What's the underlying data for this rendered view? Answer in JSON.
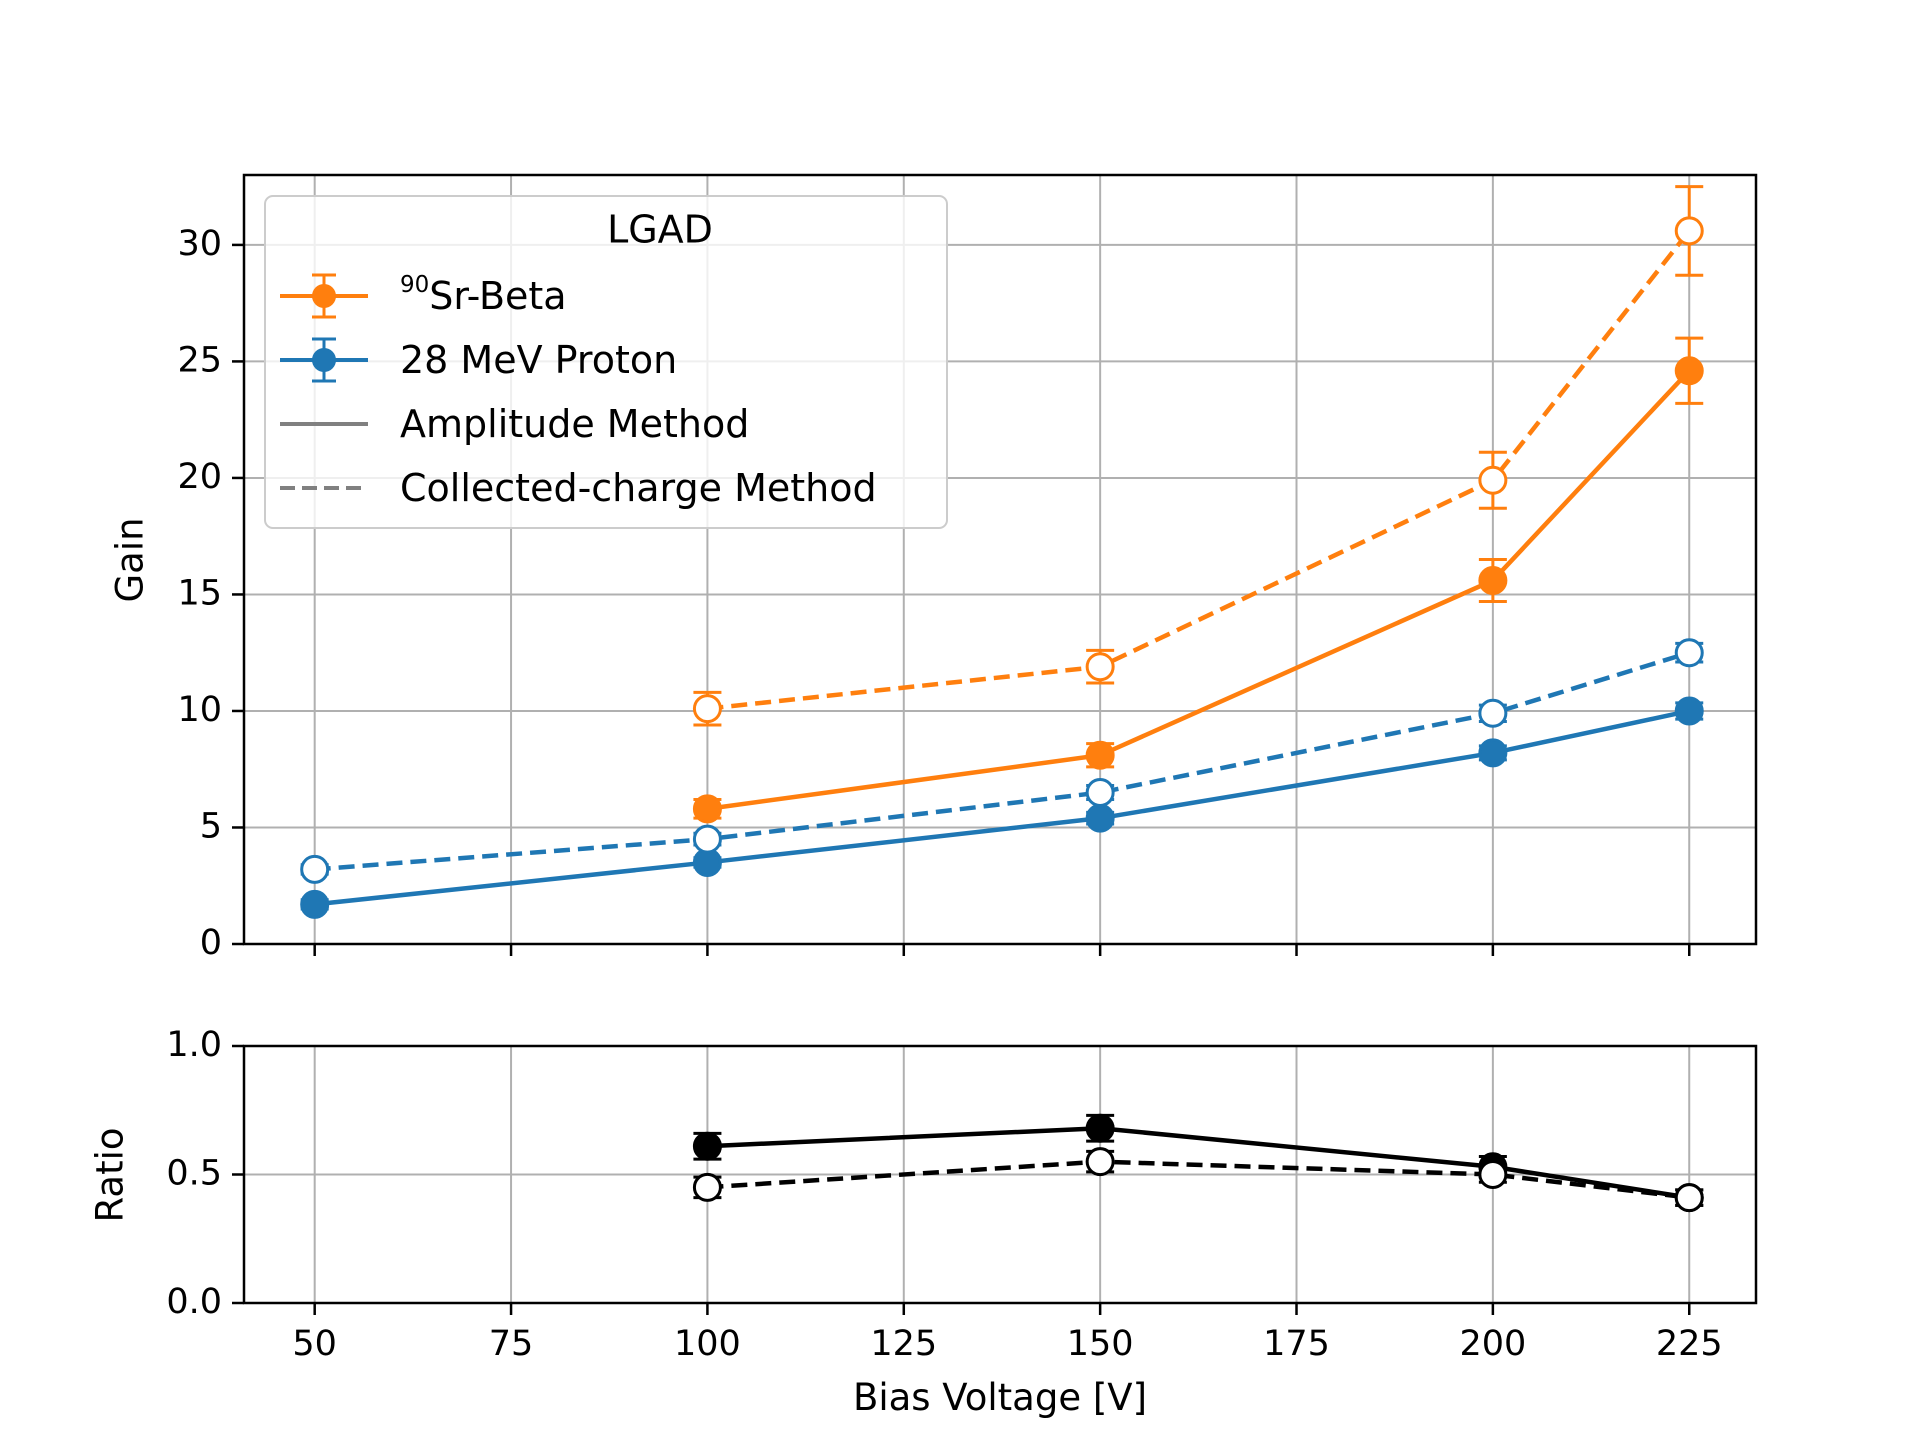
{
  "chart_data": [
    {
      "panel": "top",
      "type": "line",
      "ylabel": "Gain",
      "ylim": [
        0,
        33
      ],
      "yticks": [
        0,
        5,
        10,
        15,
        20,
        25,
        30
      ],
      "xlim": [
        41,
        233.5
      ],
      "grid": true,
      "legend": {
        "title": "LGAD",
        "placement": "top-left",
        "entries": [
          {
            "label_sup": "90",
            "label": "Sr-Beta",
            "color": "#ff7f0e",
            "kind": "errorbar"
          },
          {
            "label": "28 MeV Proton",
            "color": "#1f77b4",
            "kind": "errorbar"
          },
          {
            "label": "Amplitude Method",
            "color": "#808080",
            "kind": "solid"
          },
          {
            "label": "Collected-charge Method",
            "color": "#808080",
            "kind": "dashed"
          }
        ]
      },
      "series": [
        {
          "name": "Sr-Beta Amplitude",
          "color": "#ff7f0e",
          "style": "solid",
          "filled": true,
          "x": [
            100,
            150,
            200,
            225
          ],
          "y": [
            5.8,
            8.1,
            15.6,
            24.6
          ],
          "err": [
            0.4,
            0.5,
            0.9,
            1.4
          ]
        },
        {
          "name": "Sr-Beta Collected-charge",
          "color": "#ff7f0e",
          "style": "dashed",
          "filled": false,
          "x": [
            100,
            150,
            200,
            225
          ],
          "y": [
            10.1,
            11.9,
            19.9,
            30.6
          ],
          "err": [
            0.7,
            0.7,
            1.2,
            1.9
          ]
        },
        {
          "name": "Proton Amplitude",
          "color": "#1f77b4",
          "style": "solid",
          "filled": true,
          "x": [
            50,
            100,
            150,
            200,
            225
          ],
          "y": [
            1.7,
            3.5,
            5.4,
            8.2,
            10.0
          ],
          "err": [
            0.2,
            0.2,
            0.25,
            0.3,
            0.35
          ]
        },
        {
          "name": "Proton Collected-charge",
          "color": "#1f77b4",
          "style": "dashed",
          "filled": false,
          "x": [
            50,
            100,
            150,
            200,
            225
          ],
          "y": [
            3.2,
            4.5,
            6.5,
            9.9,
            12.5
          ],
          "err": [
            0.2,
            0.25,
            0.3,
            0.35,
            0.4
          ]
        }
      ]
    },
    {
      "panel": "bottom",
      "type": "line",
      "xlabel": "Bias Voltage [V]",
      "ylabel": "Ratio",
      "ylim": [
        0.0,
        1.0
      ],
      "yticks": [
        0.0,
        0.5,
        1.0
      ],
      "yticklabels": [
        "0.0",
        "0.5",
        "1.0"
      ],
      "xlim": [
        41,
        233.5
      ],
      "xticks": [
        50,
        75,
        100,
        125,
        150,
        175,
        200,
        225
      ],
      "grid": true,
      "series": [
        {
          "name": "Ratio Amplitude",
          "color": "#000000",
          "style": "solid",
          "filled": true,
          "x": [
            100,
            150,
            200,
            225
          ],
          "y": [
            0.61,
            0.68,
            0.53,
            0.41
          ],
          "err": [
            0.05,
            0.05,
            0.04,
            0.03
          ]
        },
        {
          "name": "Ratio Collected-charge",
          "color": "#000000",
          "style": "dashed",
          "filled": false,
          "x": [
            100,
            150,
            200,
            225
          ],
          "y": [
            0.45,
            0.55,
            0.5,
            0.41
          ],
          "err": [
            0.04,
            0.04,
            0.03,
            0.03
          ]
        }
      ]
    }
  ]
}
